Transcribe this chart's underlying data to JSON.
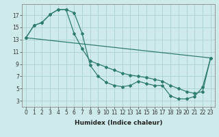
{
  "title": "",
  "xlabel": "Humidex (Indice chaleur)",
  "background_color": "#ceeaea",
  "grid_color": "#aed4d4",
  "line_color": "#2e7d6e",
  "xlim": [
    -0.5,
    23.5
  ],
  "ylim": [
    2.0,
    18.8
  ],
  "xticks": [
    0,
    1,
    2,
    3,
    4,
    5,
    6,
    7,
    8,
    9,
    10,
    11,
    12,
    13,
    14,
    15,
    16,
    17,
    18,
    19,
    20,
    21,
    22,
    23
  ],
  "yticks": [
    3,
    5,
    7,
    9,
    11,
    13,
    15,
    17
  ],
  "line1_x": [
    0,
    1,
    2,
    3,
    4,
    5,
    6,
    7,
    8,
    9,
    10,
    11,
    12,
    13,
    14,
    15,
    16,
    17,
    18,
    19,
    20,
    21,
    22,
    23
  ],
  "line1_y": [
    13.3,
    15.3,
    15.8,
    17.1,
    17.9,
    17.9,
    17.4,
    14.0,
    8.8,
    7.0,
    6.0,
    5.5,
    5.3,
    5.5,
    6.2,
    5.8,
    5.5,
    5.5,
    3.8,
    3.3,
    3.3,
    3.7,
    5.2,
    10.0
  ],
  "line2_x": [
    0,
    23
  ],
  "line2_y": [
    13.3,
    10.0
  ],
  "line3_x": [
    0,
    1,
    2,
    3,
    4,
    5,
    6,
    7,
    8,
    9,
    10,
    11,
    12,
    13,
    14,
    15,
    16,
    17,
    18,
    19,
    20,
    21,
    22,
    23
  ],
  "line3_y": [
    13.3,
    15.3,
    15.8,
    17.1,
    17.9,
    17.9,
    14.0,
    11.5,
    9.5,
    9.0,
    8.5,
    8.0,
    7.5,
    7.2,
    7.0,
    6.8,
    6.5,
    6.2,
    5.5,
    5.0,
    4.5,
    4.2,
    4.5,
    10.0
  ],
  "xlabel_fontsize": 6.5,
  "tick_fontsize": 5.5
}
